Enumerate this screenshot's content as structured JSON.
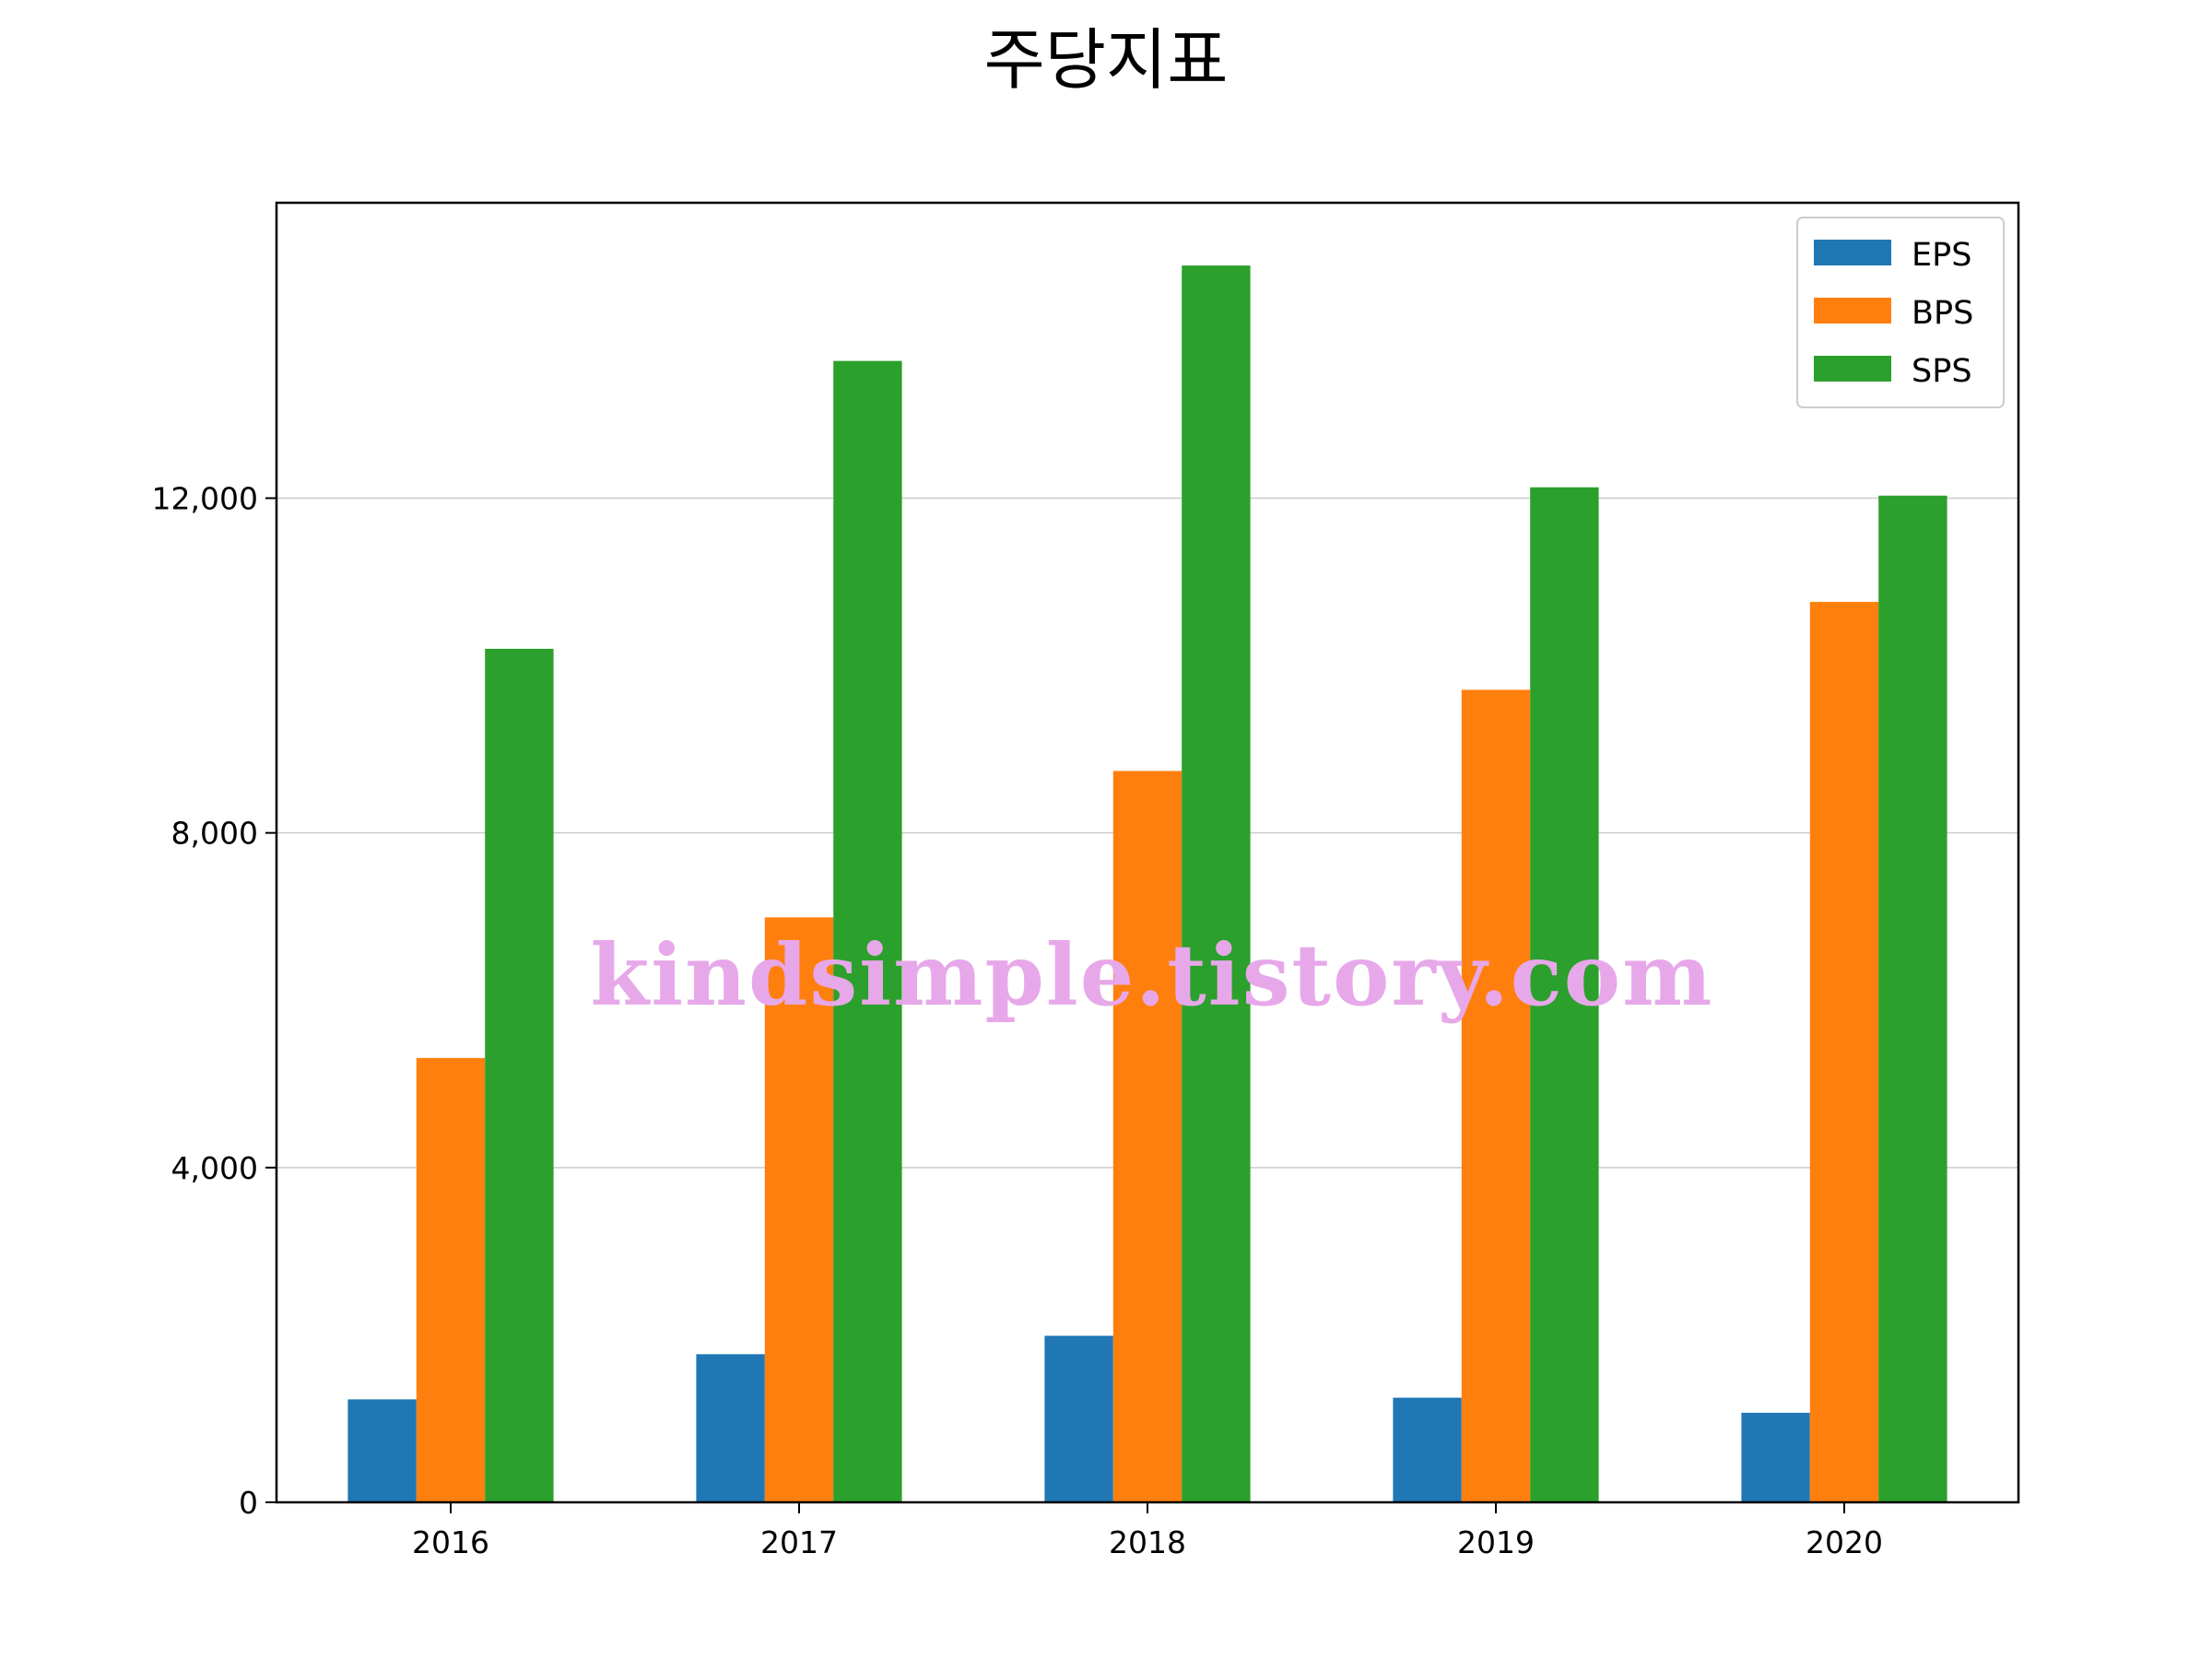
{
  "chart_data": {
    "type": "bar",
    "title": "주당지표",
    "xlabel": "",
    "ylabel": "",
    "categories": [
      "2016",
      "2017",
      "2018",
      "2019",
      "2020"
    ],
    "series": [
      {
        "name": "EPS",
        "color": "#1f77b4",
        "values": [
          1230,
          1770,
          1990,
          1250,
          1070
        ]
      },
      {
        "name": "BPS",
        "color": "#ff7f0e",
        "values": [
          5310,
          6990,
          8740,
          9710,
          10760
        ]
      },
      {
        "name": "SPS",
        "color": "#2ca02c",
        "values": [
          10200,
          13640,
          14780,
          12130,
          12030
        ]
      }
    ],
    "ylim": [
      0,
      15530
    ],
    "yticks": [
      0,
      4000,
      8000,
      12000
    ],
    "ytick_labels": [
      "0",
      "4,000",
      "8,000",
      "12,000"
    ],
    "grid": "y",
    "legend_position": "top-right"
  },
  "watermark": "kindsimple.tistory.com"
}
